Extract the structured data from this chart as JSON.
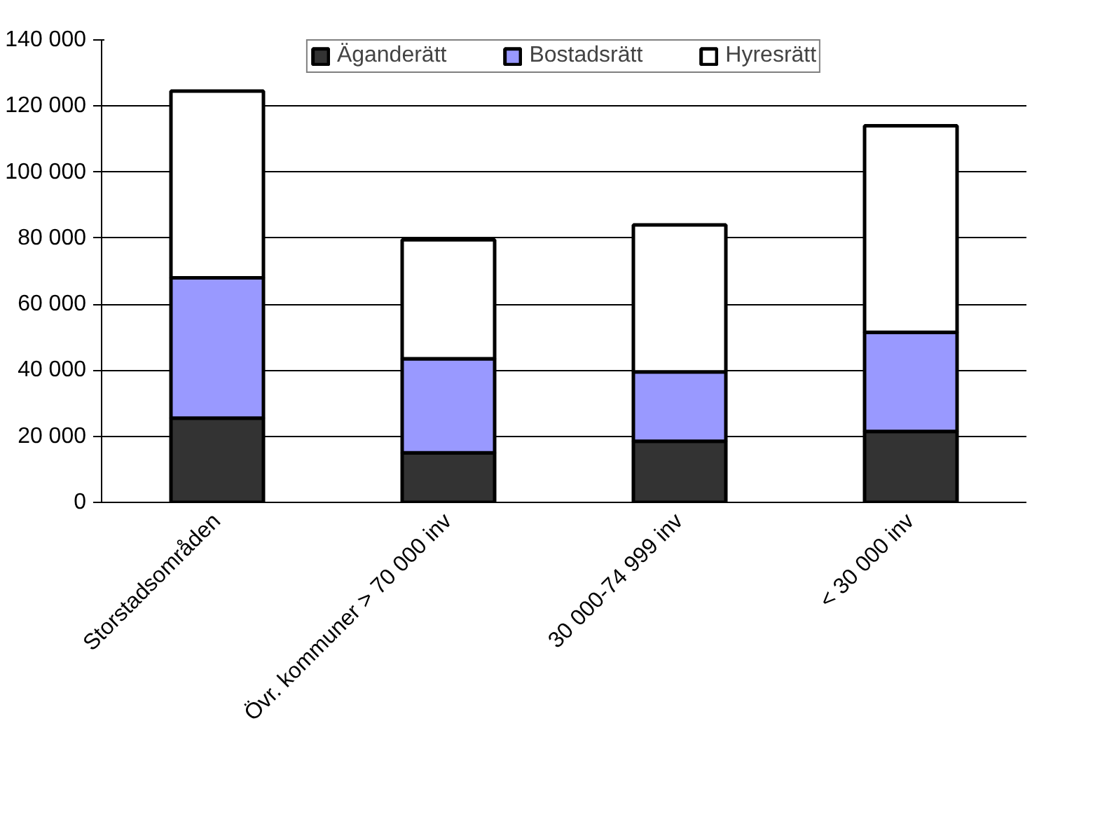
{
  "chart_data": {
    "type": "bar",
    "stacked": true,
    "categories": [
      "Storstadsområden",
      "Övr. kommuner > 70 000 inv",
      "30 000-74 999 inv",
      "< 30 000 inv"
    ],
    "series": [
      {
        "name": "Äganderätt",
        "color": "#333333",
        "values": [
          25500,
          15000,
          18500,
          21500
        ]
      },
      {
        "name": "Bostadsrätt",
        "color": "#9999ff",
        "values": [
          42500,
          28500,
          21000,
          30000
        ]
      },
      {
        "name": "Hyresrätt",
        "color": "#ffffff",
        "values": [
          56500,
          36000,
          44500,
          62500
        ]
      }
    ],
    "ylim": [
      0,
      140000
    ],
    "yticks": [
      {
        "value": 0,
        "label": "0"
      },
      {
        "value": 20000,
        "label": "20 000"
      },
      {
        "value": 40000,
        "label": "40 000"
      },
      {
        "value": 60000,
        "label": "60 000"
      },
      {
        "value": 80000,
        "label": "80 000"
      },
      {
        "value": 100000,
        "label": "100 000"
      },
      {
        "value": 120000,
        "label": "120 000"
      },
      {
        "value": 140000,
        "label": "140 000"
      }
    ],
    "grid": "y",
    "legend": "top"
  }
}
